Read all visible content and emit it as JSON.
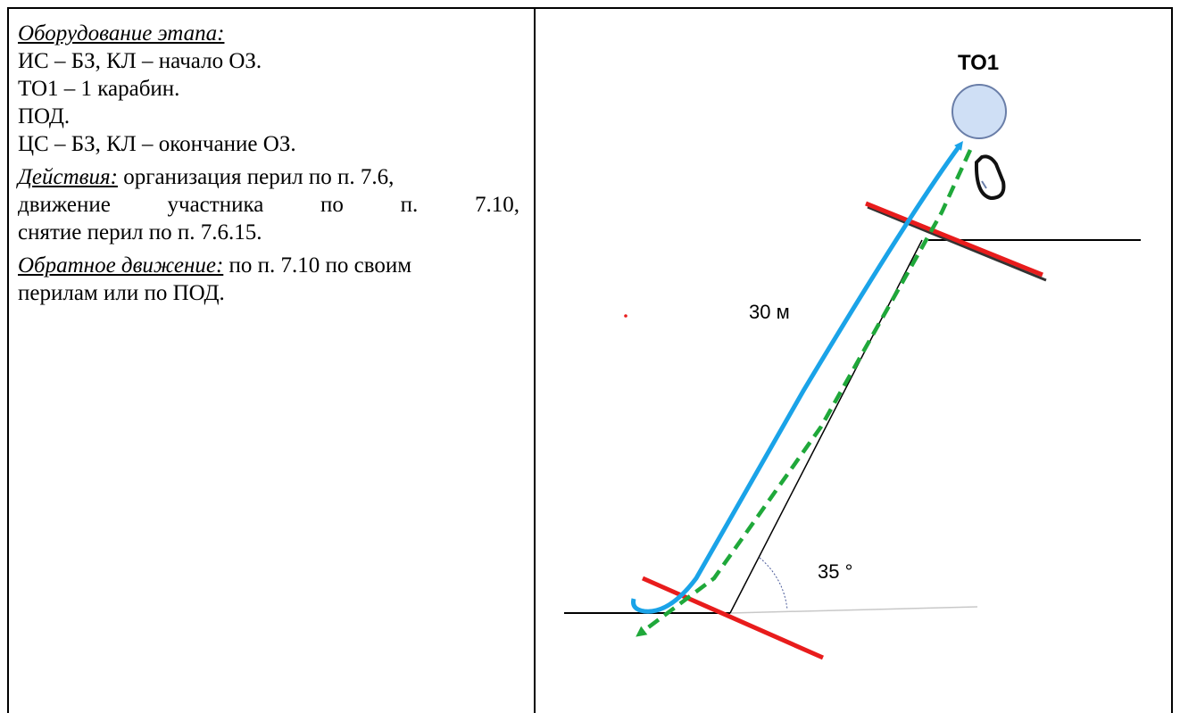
{
  "text": {
    "equipment_heading": "Оборудование этапа:",
    "equipment_lines": [
      "ИС – БЗ, КЛ – начало ОЗ.",
      "ТО1 – 1 карабин.",
      "ПОД.",
      "ЦС – БЗ, КЛ – окончание ОЗ."
    ],
    "actions_heading": "Действия:",
    "actions_line1_rest": " организация перил по п. 7.6,",
    "actions_line2_words": [
      "движение",
      "участника",
      "по",
      "п.",
      "7.10,"
    ],
    "actions_line3": "снятие перил по п. 7.6.15.",
    "return_heading": "Обратное движение:",
    "return_line1_rest": " по п. 7.10 по своим",
    "return_line2": "перилам или по ПОД."
  },
  "diagram": {
    "anchor_label": "ТО1",
    "length_label": "30 м",
    "angle_label": "35 °",
    "colors": {
      "line": "#000000",
      "rope": "#1aa3e8",
      "return_path": "#1fa83a",
      "zone_border": "#e81c1c",
      "anchor_fill": "#cfdff5",
      "anchor_stroke": "#6a7ea8",
      "angle_arc": "#4a5a9a"
    }
  }
}
